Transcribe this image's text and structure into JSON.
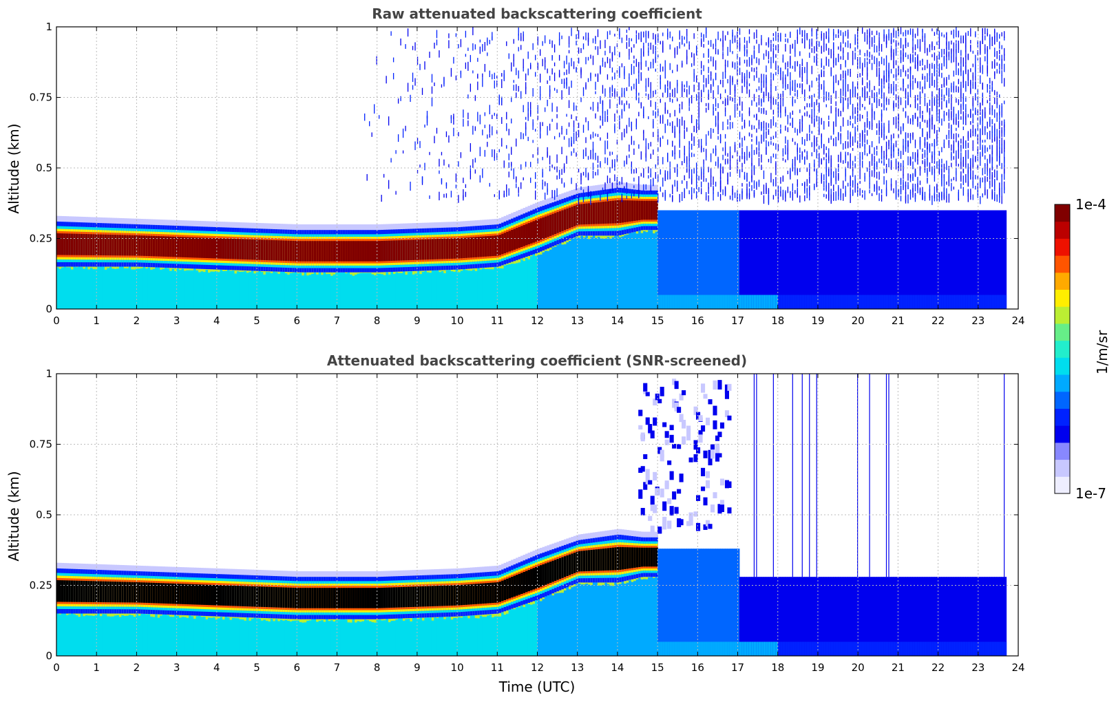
{
  "chart_data": [
    {
      "type": "heatmap",
      "title": "Raw attenuated backscattering coefficient",
      "xlabel": "",
      "ylabel": "Altitude (km)",
      "xlim": [
        0,
        24
      ],
      "ylim": [
        0,
        1
      ],
      "x_ticks": [
        "0",
        "1",
        "2",
        "3",
        "4",
        "5",
        "6",
        "7",
        "8",
        "9",
        "10",
        "11",
        "12",
        "13",
        "14",
        "15",
        "16",
        "17",
        "18",
        "19",
        "20",
        "21",
        "22",
        "23",
        "24"
      ],
      "y_ticks": [
        "0",
        "0.25",
        "0.5",
        "0.75",
        "1"
      ],
      "y_tick_values": [
        0,
        0.25,
        0.5,
        0.75,
        1
      ],
      "grid": true,
      "layer_core_color": "#800000",
      "description_layer": {
        "top_km_profile": [
          [
            0,
            0.31
          ],
          [
            2,
            0.3
          ],
          [
            4,
            0.29
          ],
          [
            6,
            0.28
          ],
          [
            8,
            0.28
          ],
          [
            10,
            0.29
          ],
          [
            11,
            0.3
          ],
          [
            12,
            0.36
          ],
          [
            13,
            0.41
          ],
          [
            14,
            0.43
          ],
          [
            14.6,
            0.42
          ]
        ],
        "base_km_profile": [
          [
            0,
            0.15
          ],
          [
            2,
            0.15
          ],
          [
            4,
            0.14
          ],
          [
            6,
            0.13
          ],
          [
            8,
            0.13
          ],
          [
            10,
            0.14
          ],
          [
            11,
            0.15
          ],
          [
            12,
            0.2
          ],
          [
            13,
            0.26
          ],
          [
            14,
            0.26
          ],
          [
            14.6,
            0.28
          ]
        ]
      },
      "data_end_hour": 23.65
    },
    {
      "type": "heatmap",
      "title": "Attenuated backscattering coefficient (SNR-screened)",
      "xlabel": "Time (UTC)",
      "ylabel": "Altitude (km)",
      "xlim": [
        0,
        24
      ],
      "ylim": [
        0,
        1
      ],
      "x_ticks": [
        "0",
        "1",
        "2",
        "3",
        "4",
        "5",
        "6",
        "7",
        "8",
        "9",
        "10",
        "11",
        "12",
        "13",
        "14",
        "15",
        "16",
        "17",
        "18",
        "19",
        "20",
        "21",
        "22",
        "23",
        "24"
      ],
      "y_ticks": [
        "0",
        "0.25",
        "0.5",
        "0.75",
        "1"
      ],
      "y_tick_values": [
        0,
        0.25,
        0.5,
        0.75,
        1
      ],
      "grid": true,
      "layer_core_color": "#000000",
      "screened_top_km_after_17h": 0.28,
      "data_end_hour": 23.65
    }
  ],
  "colorbar": {
    "label": "1/m/sr",
    "max_label": "1e-4",
    "min_label": "1e-7",
    "colors": [
      "#eeeeff",
      "#c8c8ff",
      "#8888ff",
      "#0000ee",
      "#0022ff",
      "#0066ff",
      "#00aaff",
      "#00ddee",
      "#22eecc",
      "#66ee88",
      "#bbee33",
      "#ffee00",
      "#ffaa00",
      "#ff5500",
      "#ee1100",
      "#bb0000",
      "#800000"
    ]
  }
}
